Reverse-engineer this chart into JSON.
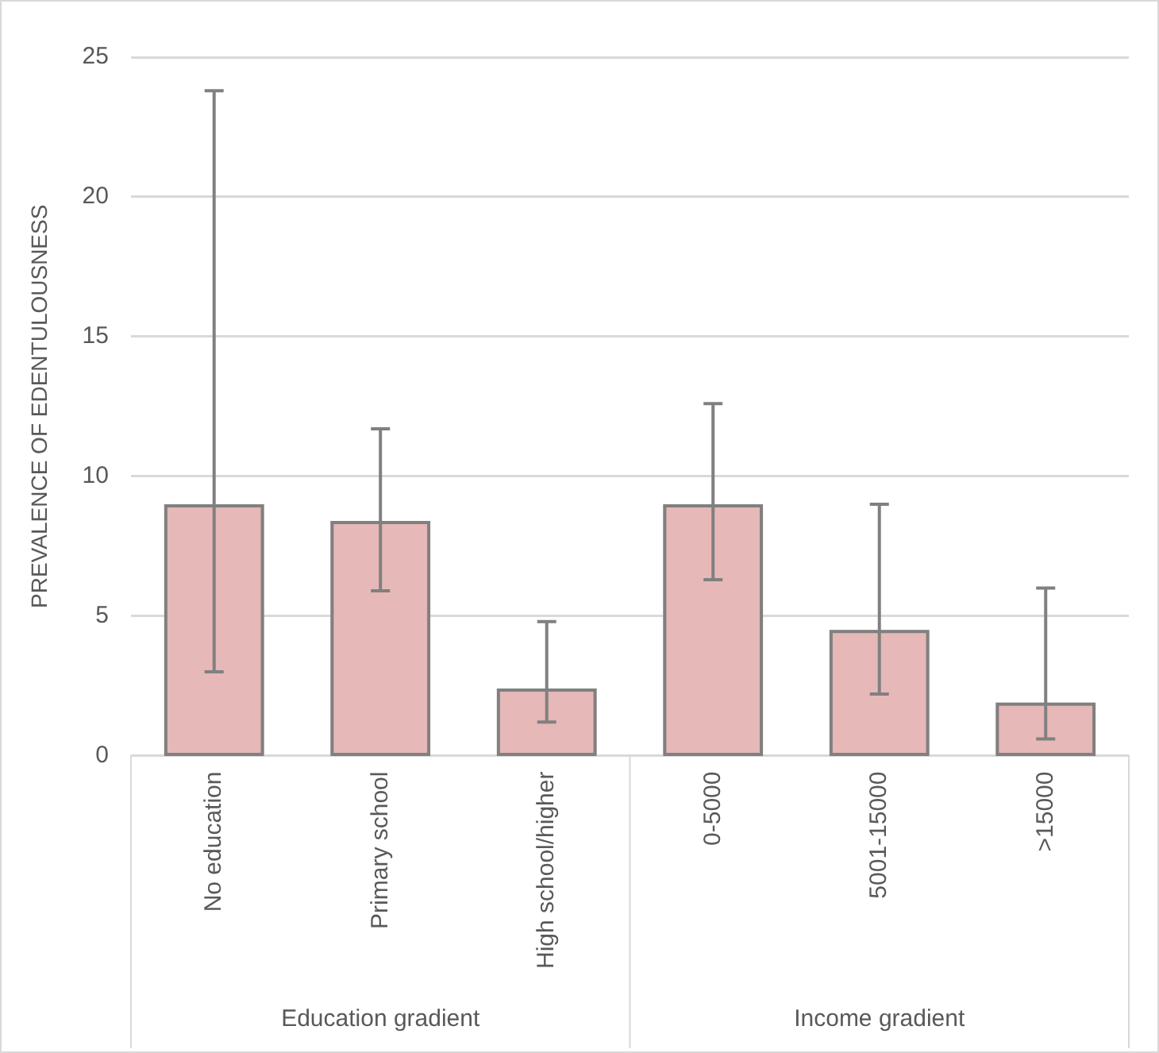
{
  "chart_data": {
    "type": "bar",
    "ylabel": "PREVALENCE OF EDENTULOUSNESS",
    "categories": [
      "No education",
      "Primary school",
      "High school/higher",
      "0-5000",
      "5001-15000",
      ">15000"
    ],
    "values": [
      9.0,
      8.4,
      2.4,
      9.0,
      4.5,
      1.9
    ],
    "errors": [
      [
        3.0,
        23.8
      ],
      [
        5.9,
        11.7
      ],
      [
        1.2,
        4.8
      ],
      [
        6.3,
        12.6
      ],
      [
        2.2,
        9.0
      ],
      [
        0.6,
        6.0
      ]
    ],
    "color": "#e6b8b7",
    "ylim": [
      0,
      25
    ],
    "yticks": [
      0,
      5,
      10,
      15,
      20,
      25
    ],
    "grid": "y",
    "legend": false,
    "annotations": [
      "Education gradient",
      "Income gradient"
    ]
  }
}
